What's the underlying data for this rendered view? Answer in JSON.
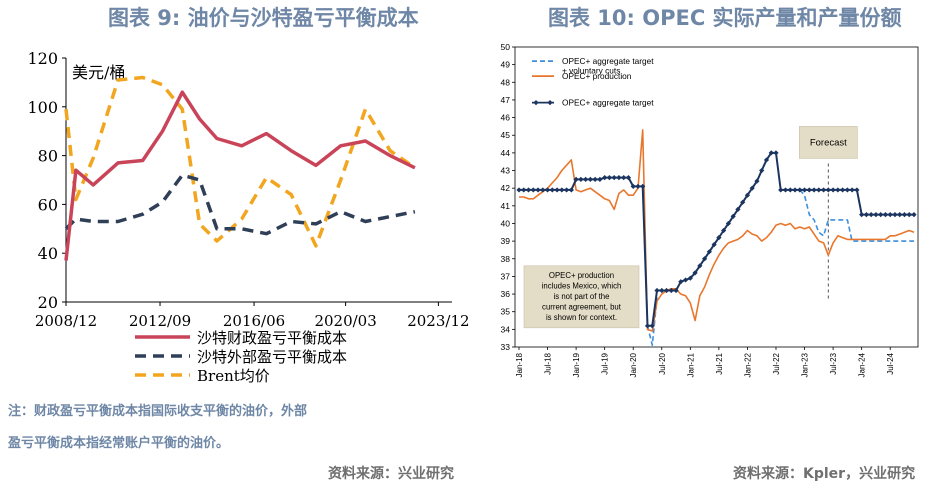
{
  "left": {
    "title": "图表 9:  油价与沙特盈亏平衡成本",
    "note_line1": "注：财政盈亏平衡成本指国际收支平衡的油价，外部",
    "note_line2": "盈亏平衡成本指经常账户平衡的油价。",
    "source": "资料来源：兴业研究"
  },
  "right": {
    "title": "图表 10: OPEC 实际产量和产量份额",
    "source": "资料来源：Kpler，兴业研究"
  },
  "chart_data": [
    {
      "type": "line",
      "unit_label": "美元/桶",
      "ylim": [
        20,
        120
      ],
      "yticks": [
        20,
        40,
        60,
        80,
        100,
        120
      ],
      "xticks": [
        "2008/12",
        "2012/09",
        "2016/06",
        "2020/03",
        "2023/12"
      ],
      "x": [
        2008.9,
        2009.3,
        2010.0,
        2011.0,
        2012.0,
        2012.8,
        2013.6,
        2014.3,
        2015.0,
        2016.0,
        2017.0,
        2018.0,
        2019.0,
        2020.0,
        2021.0,
        2022.0,
        2023.0,
        2024.0,
        2024.5
      ],
      "series": [
        {
          "name": "沙特财政盈亏平衡成本",
          "color": "#c94459",
          "style": "solid",
          "values": [
            37,
            74,
            68,
            77,
            78,
            90,
            106,
            95,
            87,
            84,
            89,
            82,
            76,
            84,
            86,
            80,
            75,
            null,
            null
          ]
        },
        {
          "name": "沙特外部盈亏平衡成本",
          "color": "#2f3f58",
          "style": "dashed",
          "values": [
            50,
            54,
            53,
            53,
            56,
            61,
            72,
            70,
            50,
            50,
            48,
            53,
            52,
            57,
            53,
            55,
            57,
            null,
            null
          ]
        },
        {
          "name": "Brent均价",
          "color": "#f2a51e",
          "style": "dashed",
          "values": [
            99,
            62,
            79,
            111,
            112,
            109,
            99,
            52,
            45,
            54,
            71,
            64,
            43,
            70,
            99,
            82,
            75,
            null,
            null
          ]
        }
      ]
    },
    {
      "type": "line",
      "ylim": [
        33,
        50
      ],
      "yticks": [
        33,
        34,
        35,
        36,
        37,
        38,
        39,
        40,
        41,
        42,
        43,
        44,
        45,
        46,
        47,
        48,
        49,
        50
      ],
      "xticks": [
        "Jan-18",
        "Jul-18",
        "Jan-19",
        "Jul-19",
        "Jan-20",
        "Jul-20",
        "Jan-21",
        "Jul-21",
        "Jan-22",
        "Jul-22",
        "Jan-23",
        "Jul-23",
        "Jan-24",
        "Jul-24"
      ],
      "months": [
        "2018-01",
        "2018-02",
        "2018-03",
        "2018-04",
        "2018-05",
        "2018-06",
        "2018-07",
        "2018-08",
        "2018-09",
        "2018-10",
        "2018-11",
        "2018-12",
        "2019-01",
        "2019-02",
        "2019-03",
        "2019-04",
        "2019-05",
        "2019-06",
        "2019-07",
        "2019-08",
        "2019-09",
        "2019-10",
        "2019-11",
        "2019-12",
        "2020-01",
        "2020-02",
        "2020-03",
        "2020-04",
        "2020-05",
        "2020-06",
        "2020-07",
        "2020-08",
        "2020-09",
        "2020-10",
        "2020-11",
        "2020-12",
        "2021-01",
        "2021-02",
        "2021-03",
        "2021-04",
        "2021-05",
        "2021-06",
        "2021-07",
        "2021-08",
        "2021-09",
        "2021-10",
        "2021-11",
        "2021-12",
        "2022-01",
        "2022-02",
        "2022-03",
        "2022-04",
        "2022-05",
        "2022-06",
        "2022-07",
        "2022-08",
        "2022-09",
        "2022-10",
        "2022-11",
        "2022-12",
        "2023-01",
        "2023-02",
        "2023-03",
        "2023-04",
        "2023-05",
        "2023-06",
        "2023-07",
        "2023-08",
        "2023-09",
        "2023-10",
        "2023-11",
        "2023-12",
        "2024-01",
        "2024-02",
        "2024-03",
        "2024-04",
        "2024-05",
        "2024-06",
        "2024-07",
        "2024-08",
        "2024-09",
        "2024-10",
        "2024-11",
        "2024-12"
      ],
      "forecast_label": "Forecast",
      "forecast_start": "2023-06",
      "annotation": [
        "OPEC+ production",
        "includes Mexico, which",
        "is not part of the",
        "current agreement, but",
        "is shown for context."
      ],
      "series": [
        {
          "name": "OPEC+ aggregate target",
          "color": "#1b3560",
          "style": "solid-markers",
          "values": [
            41.9,
            41.9,
            41.9,
            41.9,
            41.9,
            41.9,
            41.9,
            41.9,
            41.9,
            41.9,
            41.9,
            41.9,
            42.5,
            42.5,
            42.5,
            42.5,
            42.5,
            42.5,
            42.6,
            42.6,
            42.6,
            42.6,
            42.6,
            42.6,
            42.1,
            42.1,
            42.1,
            34.2,
            34.2,
            36.2,
            36.2,
            36.2,
            36.2,
            36.2,
            36.7,
            36.8,
            36.9,
            37.2,
            37.6,
            38.0,
            38.4,
            38.8,
            39.2,
            39.6,
            40.0,
            40.4,
            40.8,
            41.2,
            41.6,
            42.0,
            42.4,
            43.0,
            43.6,
            44.0,
            44.0,
            41.9,
            41.9,
            41.9,
            41.9,
            41.9,
            41.9,
            41.9,
            41.9,
            41.9,
            41.9,
            41.9,
            41.9,
            41.9,
            41.9,
            41.9,
            41.9,
            41.9,
            40.5,
            40.5,
            40.5,
            40.5,
            40.5,
            40.5,
            40.5,
            40.5,
            40.5,
            40.5,
            40.5,
            40.5
          ]
        },
        {
          "name": "OPEC+ production",
          "color": "#e8772d",
          "style": "solid",
          "values": [
            41.5,
            41.5,
            41.4,
            41.4,
            41.6,
            41.8,
            42.0,
            42.3,
            42.6,
            43.0,
            43.3,
            43.6,
            41.9,
            41.8,
            41.9,
            42.0,
            41.8,
            41.6,
            41.4,
            41.3,
            40.8,
            41.7,
            41.9,
            41.6,
            41.6,
            42.0,
            45.3,
            34.0,
            33.9,
            35.6,
            36.0,
            36.2,
            36.3,
            36.3,
            36.0,
            35.9,
            35.5,
            34.5,
            35.9,
            36.4,
            37.1,
            37.7,
            38.2,
            38.6,
            38.9,
            39.0,
            39.1,
            39.3,
            39.6,
            39.4,
            39.3,
            39.0,
            39.2,
            39.5,
            39.9,
            40.0,
            39.9,
            40.0,
            39.7,
            39.8,
            39.7,
            39.8,
            39.4,
            39.0,
            38.9,
            38.2,
            38.9,
            39.3,
            39.2,
            39.1,
            39.1,
            39.1,
            39.1,
            39.1,
            39.1,
            39.1,
            39.1,
            39.1,
            39.3,
            39.3,
            39.4,
            39.5,
            39.6,
            39.5
          ]
        },
        {
          "name": "OPEC+ aggregate target\n+ voluntary cuts",
          "color": "#3d8fdc",
          "style": "dashed",
          "values": [
            null,
            null,
            null,
            null,
            null,
            null,
            null,
            null,
            null,
            null,
            null,
            null,
            null,
            null,
            null,
            null,
            null,
            null,
            null,
            null,
            null,
            null,
            null,
            null,
            null,
            null,
            null,
            34.2,
            33.1,
            35.8,
            null,
            null,
            null,
            null,
            null,
            null,
            null,
            null,
            null,
            null,
            null,
            null,
            null,
            null,
            null,
            null,
            null,
            null,
            null,
            null,
            null,
            null,
            null,
            null,
            null,
            null,
            null,
            null,
            null,
            41.9,
            41.6,
            40.5,
            40.2,
            39.5,
            39.3,
            40.2,
            40.2,
            40.2,
            40.2,
            40.2,
            39.0,
            39.0,
            39.0,
            39.0,
            39.0,
            39.0,
            39.0,
            39.0,
            39.0,
            39.0,
            39.0,
            39.0,
            39.0,
            39.0
          ]
        }
      ]
    }
  ]
}
